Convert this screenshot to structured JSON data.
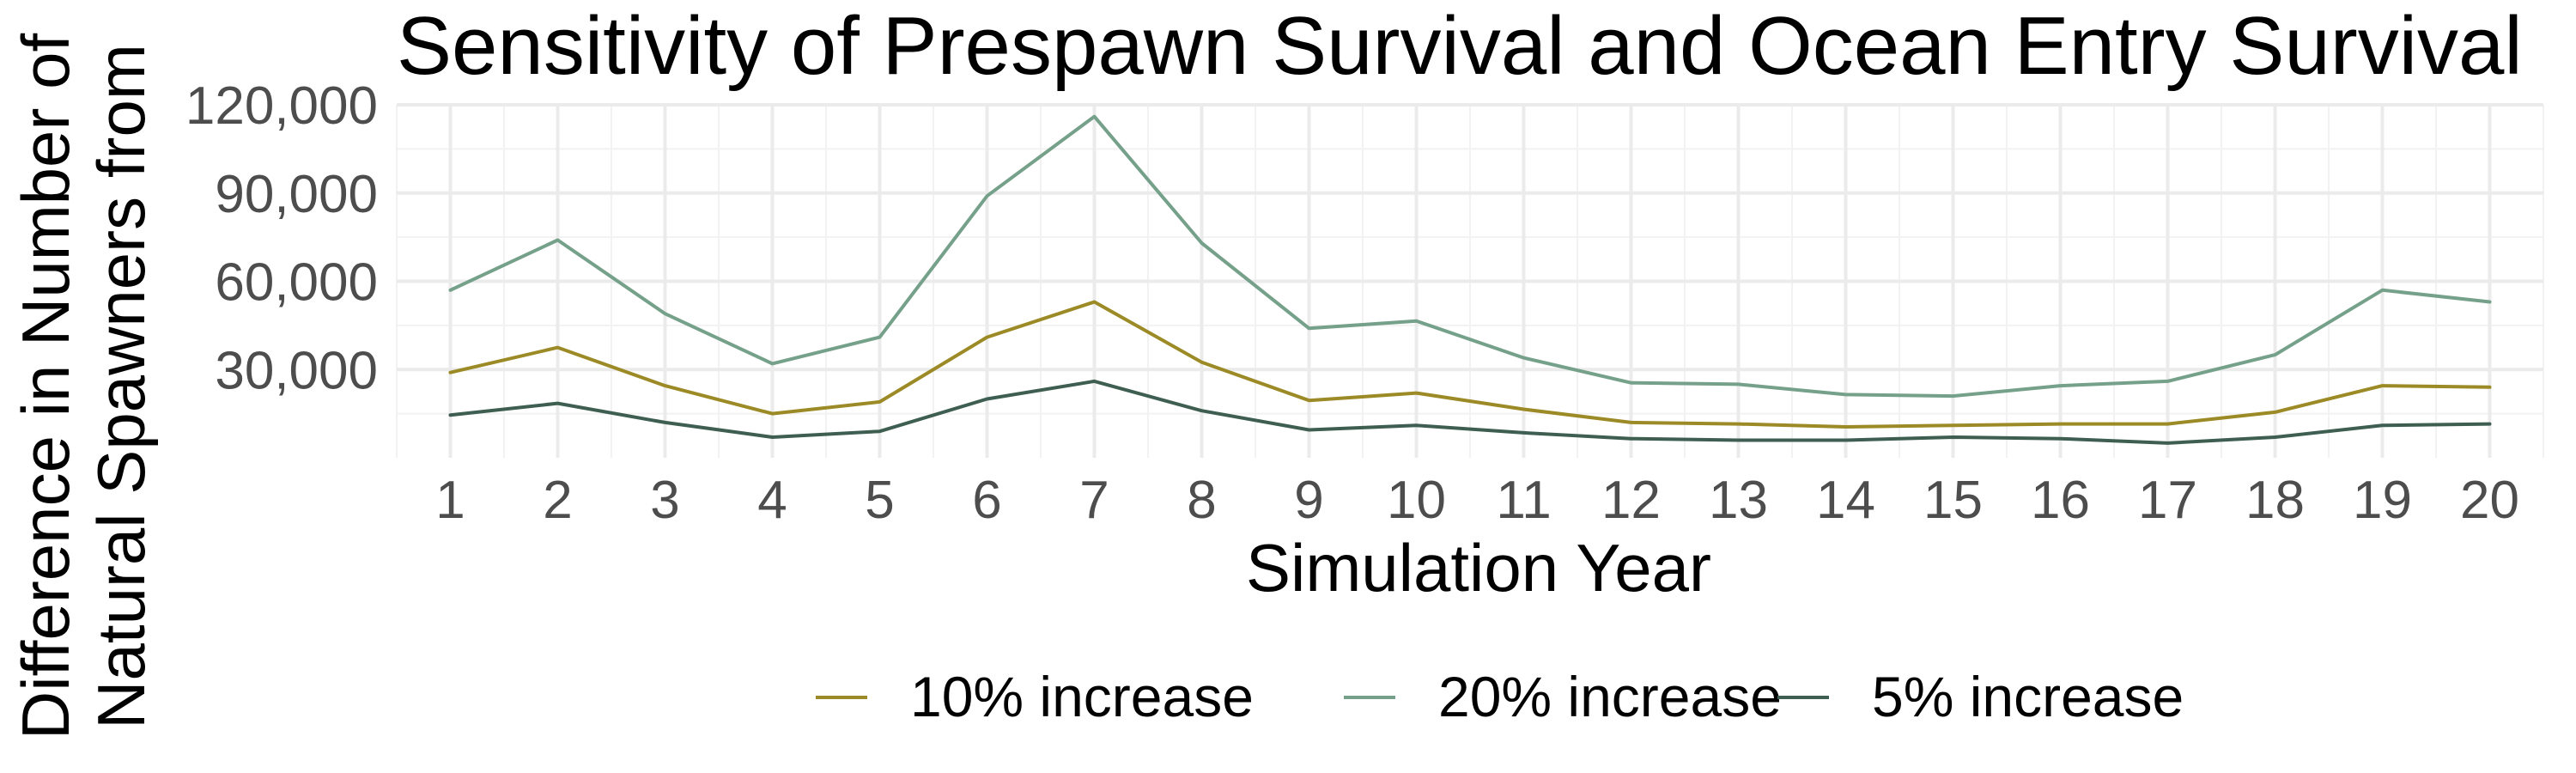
{
  "chart_data": {
    "type": "line",
    "title": "Sensitivity of Prespawn Survival and Ocean Entry Survival",
    "xlabel": "Simulation Year",
    "ylabel_lines": [
      "Difference in Number of",
      "Natural Spawners from"
    ],
    "x": [
      1,
      2,
      3,
      4,
      5,
      6,
      7,
      8,
      9,
      10,
      11,
      12,
      13,
      14,
      15,
      16,
      17,
      18,
      19,
      20
    ],
    "xlim": [
      0.5,
      20.5
    ],
    "ylim": [
      0,
      120000
    ],
    "yticks": [
      30000,
      60000,
      90000,
      120000
    ],
    "ytick_labels": [
      "30,000",
      "60,000",
      "90,000",
      "120,000"
    ],
    "grid": true,
    "legend_position": "bottom",
    "series": [
      {
        "name": "10% increase",
        "color": "#9b8a25",
        "values": [
          29000,
          37500,
          24500,
          15000,
          19000,
          41000,
          53000,
          32500,
          19500,
          22000,
          16500,
          12000,
          11500,
          10500,
          11000,
          11500,
          11500,
          15500,
          24500,
          24000
        ]
      },
      {
        "name": "20% increase",
        "color": "#75a08a",
        "values": [
          57000,
          74000,
          49000,
          32000,
          41000,
          89000,
          116000,
          73000,
          44000,
          46500,
          34000,
          25500,
          25000,
          21500,
          21000,
          24500,
          26000,
          35000,
          57000,
          53000
        ]
      },
      {
        "name": "5% increase",
        "color": "#3e5e52",
        "values": [
          14500,
          18500,
          12000,
          7000,
          9000,
          20000,
          26000,
          16000,
          9500,
          11000,
          8500,
          6500,
          6000,
          6000,
          7000,
          6500,
          5000,
          7000,
          11000,
          11500
        ]
      }
    ]
  }
}
